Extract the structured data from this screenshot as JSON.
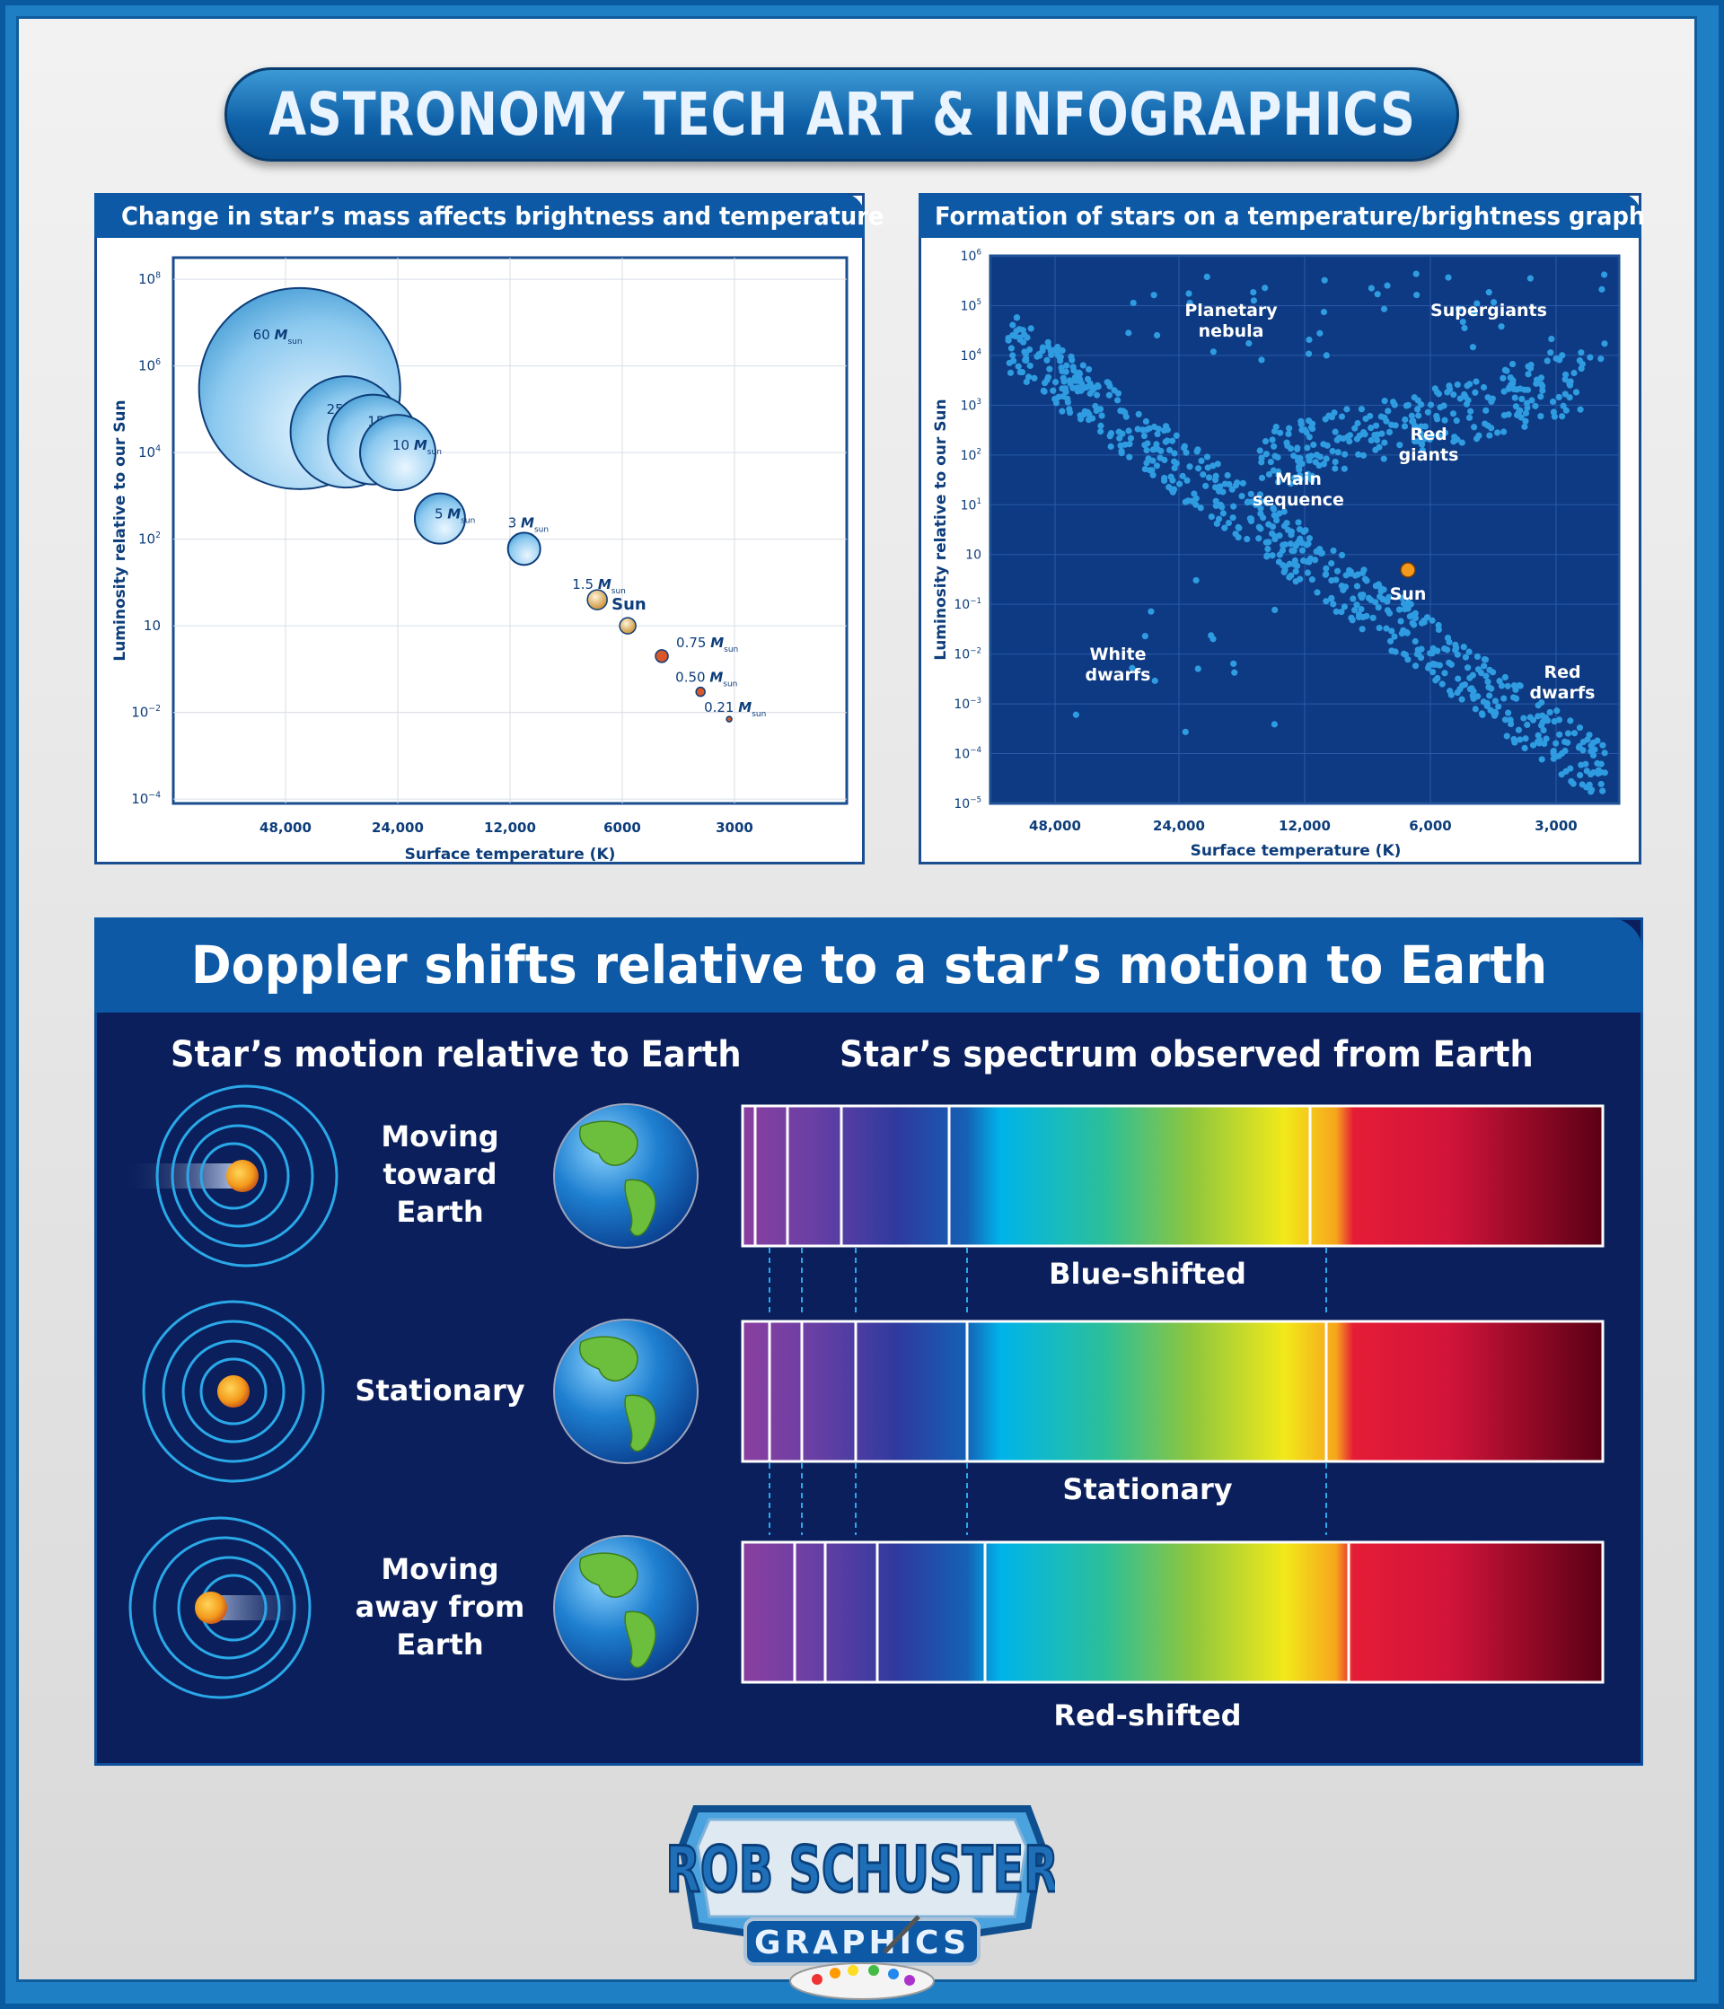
{
  "banner": {
    "title": "ASTRONOMY TECH ART & INFOGRAPHICS"
  },
  "mass_chart": {
    "header": "Change in star’s mass affects brightness and temperature",
    "chart_data": {
      "type": "scatter",
      "xlabel": "Surface temperature (K)",
      "ylabel": "Luminosity relative to our Sun",
      "x_ticks": [
        "48,000",
        "24,000",
        "12,000",
        "6000",
        "3000"
      ],
      "y_ticks": [
        {
          "base": "10",
          "exp": "8"
        },
        {
          "base": "10",
          "exp": "6"
        },
        {
          "base": "10",
          "exp": "4"
        },
        {
          "base": "10",
          "exp": "2"
        },
        {
          "base": "10",
          "exp": ""
        },
        {
          "base": "10",
          "exp": "−2"
        },
        {
          "base": "10",
          "exp": "−4"
        }
      ],
      "x_scale": "log (reversed)",
      "y_scale": "log",
      "grid": true,
      "stars": [
        {
          "num": "60",
          "label_sub": "sun",
          "temp_K": 44000,
          "luminosity": 300000
        },
        {
          "num": "25",
          "label_sub": "sun",
          "temp_K": 33000,
          "luminosity": 30000
        },
        {
          "num": "15",
          "label_sub": "sun",
          "temp_K": 28000,
          "luminosity": 20000
        },
        {
          "num": "10",
          "label_sub": "sun",
          "temp_K": 24000,
          "luminosity": 10000
        },
        {
          "num": "5",
          "label_sub": "sun",
          "temp_K": 18500,
          "luminosity": 300
        },
        {
          "num": "3",
          "label_sub": "sun",
          "temp_K": 11000,
          "luminosity": 60
        },
        {
          "num": "1.5",
          "label_sub": "sun",
          "temp_K": 7000,
          "luminosity": 4
        },
        {
          "num": "",
          "label": "Sun",
          "temp_K": 5800,
          "luminosity": 1
        },
        {
          "num": "0.75",
          "label_sub": "sun",
          "temp_K": 4700,
          "luminosity": 0.2
        },
        {
          "num": "0.50",
          "label_sub": "sun",
          "temp_K": 3700,
          "luminosity": 0.03
        },
        {
          "num": "0.21",
          "label_sub": "sun",
          "temp_K": 3100,
          "luminosity": 0.007
        }
      ],
      "mass_symbol": "M"
    }
  },
  "hr_chart": {
    "header": "Formation of stars on a temperature/brightness graph",
    "chart_data": {
      "type": "scatter",
      "xlabel": "Surface temperature (K)",
      "ylabel": "Luminosity relative to our Sun",
      "x_ticks": [
        "48,000",
        "24,000",
        "12,000",
        "6,000",
        "3,000"
      ],
      "y_ticks": [
        {
          "base": "10",
          "exp": "6"
        },
        {
          "base": "10",
          "exp": "5"
        },
        {
          "base": "10",
          "exp": "4"
        },
        {
          "base": "10",
          "exp": "3"
        },
        {
          "base": "10",
          "exp": "2"
        },
        {
          "base": "10",
          "exp": "1"
        },
        {
          "base": "10",
          "exp": ""
        },
        {
          "base": "10",
          "exp": "−1"
        },
        {
          "base": "10",
          "exp": "−2"
        },
        {
          "base": "10",
          "exp": "−3"
        },
        {
          "base": "10",
          "exp": "−4"
        },
        {
          "base": "10",
          "exp": "−5"
        }
      ],
      "regions": [
        {
          "lines": [
            "Planetary",
            "nebula"
          ]
        },
        {
          "lines": [
            "Supergiants"
          ]
        },
        {
          "lines": [
            "Red",
            "giants"
          ]
        },
        {
          "lines": [
            "Main",
            "sequence"
          ]
        },
        {
          "lines": [
            "Sun"
          ]
        },
        {
          "lines": [
            "White",
            "dwarfs"
          ]
        },
        {
          "lines": [
            "Red",
            "dwarfs"
          ]
        }
      ],
      "sun_marker": {
        "temp_K": 5800,
        "luminosity": 1
      }
    }
  },
  "doppler": {
    "title": "Doppler shifts relative to a  star’s motion to Earth",
    "col_motion": "Star’s motion relative to Earth",
    "col_spectrum": "Star’s spectrum observed from Earth",
    "rows": [
      {
        "motion": [
          "Moving",
          "toward",
          "Earth"
        ],
        "spectrum_label": "Blue-shifted"
      },
      {
        "motion": [
          "Stationary"
        ],
        "spectrum_label": "Stationary"
      },
      {
        "motion": [
          "Moving",
          "away from",
          "Earth"
        ],
        "spectrum_label": "Red-shifted"
      }
    ],
    "colors": {
      "panel_bg": "#0a1f5c",
      "header_bg": "#0d59a6",
      "ring": "#2aa8e8",
      "star": "#f39a1c"
    }
  },
  "logo": {
    "line1": "ROB SCHUSTER",
    "line2": "GRAPHICS"
  }
}
